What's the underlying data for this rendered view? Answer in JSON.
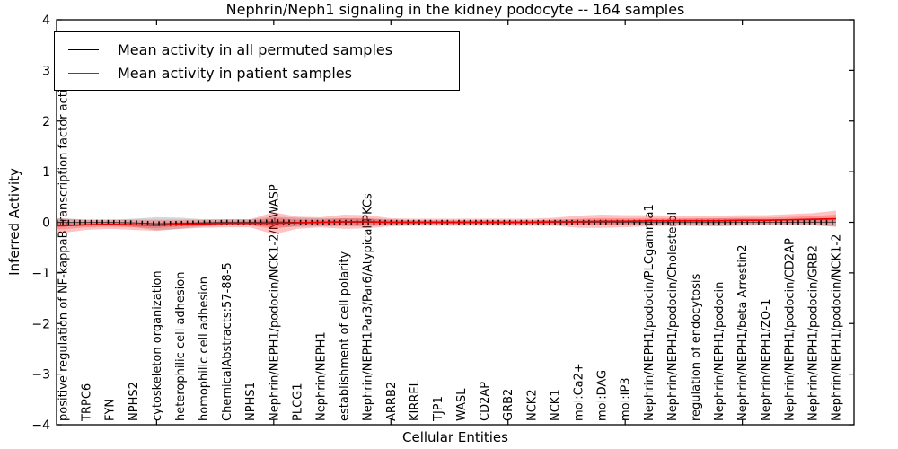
{
  "figure": {
    "title": "Nephrin/Neph1 signaling in the kidney podocyte -- 164 samples",
    "xlabel": "Cellular Entities",
    "ylabel": "Inferred Activity"
  },
  "legend": {
    "items": [
      {
        "label": "Mean activity in all permuted samples",
        "color": "#000000"
      },
      {
        "label": "Mean activity in patient samples",
        "color": "#ff0000"
      }
    ]
  },
  "chart_data": {
    "type": "line",
    "title": "Nephrin/Neph1 signaling in the kidney podocyte -- 164 samples",
    "xlabel": "Cellular Entities",
    "ylabel": "Inferred Activity",
    "ylim": [
      -4,
      4
    ],
    "yticks": [
      4,
      3,
      2,
      1,
      0,
      -1,
      -2,
      -3,
      -4
    ],
    "xtick_major_positions": [
      5,
      10,
      15,
      20,
      25,
      30
    ],
    "grid": false,
    "legend_position": "upper left",
    "categories": [
      "positive regulation of NF-kappaB transcription factor activity",
      "TRPC6",
      "FYN",
      "NPHS2",
      "cytoskeleton organization",
      "heterophilic cell adhesion",
      "homophilic cell adhesion",
      "ChemicalAbstracts:57-88-5",
      "NPHS1",
      "Nephrin/NEPH1/podocin/NCK1-2/N-WASP",
      "PLCG1",
      "Nephrin/NEPH1",
      "establishment of cell polarity",
      "Nephrin/NEPH1Par3/Par6/Atypical PKCs",
      "ARRB2",
      "KIRREL",
      "TJP1",
      "WASL",
      "CD2AP",
      "GRB2",
      "NCK2",
      "NCK1",
      "mol:Ca2+",
      "mol:DAG",
      "mol:IP3",
      "Nephrin/NEPH1/podocin/PLCgamma1",
      "Nephrin/NEPH1/podocin/Cholesterol",
      "regulation of endocytosis",
      "Nephrin/NEPH1/podocin",
      "Nephrin/NEPH1/beta Arrestin2",
      "Nephrin/NEPH1/ZO-1",
      "Nephrin/NEPH1/podocin/CD2AP",
      "Nephrin/NEPH1/podocin/GRB2",
      "Nephrin/NEPH1/podocin/NCK1-2"
    ],
    "series": [
      {
        "name": "Mean activity in all permuted samples",
        "color": "#000000",
        "style": "dashed",
        "band_color": "rgba(110,110,110,0.28)",
        "values": [
          0,
          0,
          0,
          -0.01,
          -0.03,
          -0.02,
          -0.01,
          0,
          0,
          0.01,
          0,
          0,
          0,
          0,
          0,
          0,
          0,
          0,
          0,
          0,
          0,
          0,
          0,
          0,
          0,
          0,
          0,
          0,
          0,
          0,
          0,
          0,
          0,
          0
        ],
        "band_halfwidth": [
          0.08,
          0.05,
          0.05,
          0.08,
          0.13,
          0.11,
          0.07,
          0.06,
          0.06,
          0.1,
          0.09,
          0.08,
          0.08,
          0.08,
          0.06,
          0.04,
          0.04,
          0.04,
          0.04,
          0.04,
          0.04,
          0.05,
          0.05,
          0.05,
          0.05,
          0.05,
          0.06,
          0.07,
          0.08,
          0.07,
          0.06,
          0.06,
          0.06,
          0.08
        ]
      },
      {
        "name": "Mean activity in patient samples",
        "color": "#ee0000",
        "style": "solid",
        "band_color": "rgba(255,20,20,0.26)",
        "values": [
          -0.07,
          -0.05,
          -0.04,
          -0.05,
          -0.06,
          -0.04,
          -0.03,
          -0.02,
          -0.02,
          -0.02,
          -0.01,
          0,
          0.01,
          0.01,
          0,
          0,
          0,
          0,
          0,
          0,
          0,
          0.01,
          0.01,
          0.02,
          0.02,
          0.03,
          0.03,
          0.03,
          0.03,
          0.04,
          0.04,
          0.05,
          0.06,
          0.07
        ],
        "band_halfwidth": [
          0.14,
          0.1,
          0.09,
          0.1,
          0.11,
          0.09,
          0.08,
          0.08,
          0.08,
          0.22,
          0.12,
          0.1,
          0.14,
          0.13,
          0.08,
          0.07,
          0.07,
          0.07,
          0.07,
          0.07,
          0.07,
          0.08,
          0.12,
          0.13,
          0.12,
          0.11,
          0.1,
          0.1,
          0.1,
          0.1,
          0.1,
          0.11,
          0.12,
          0.16
        ]
      }
    ]
  }
}
